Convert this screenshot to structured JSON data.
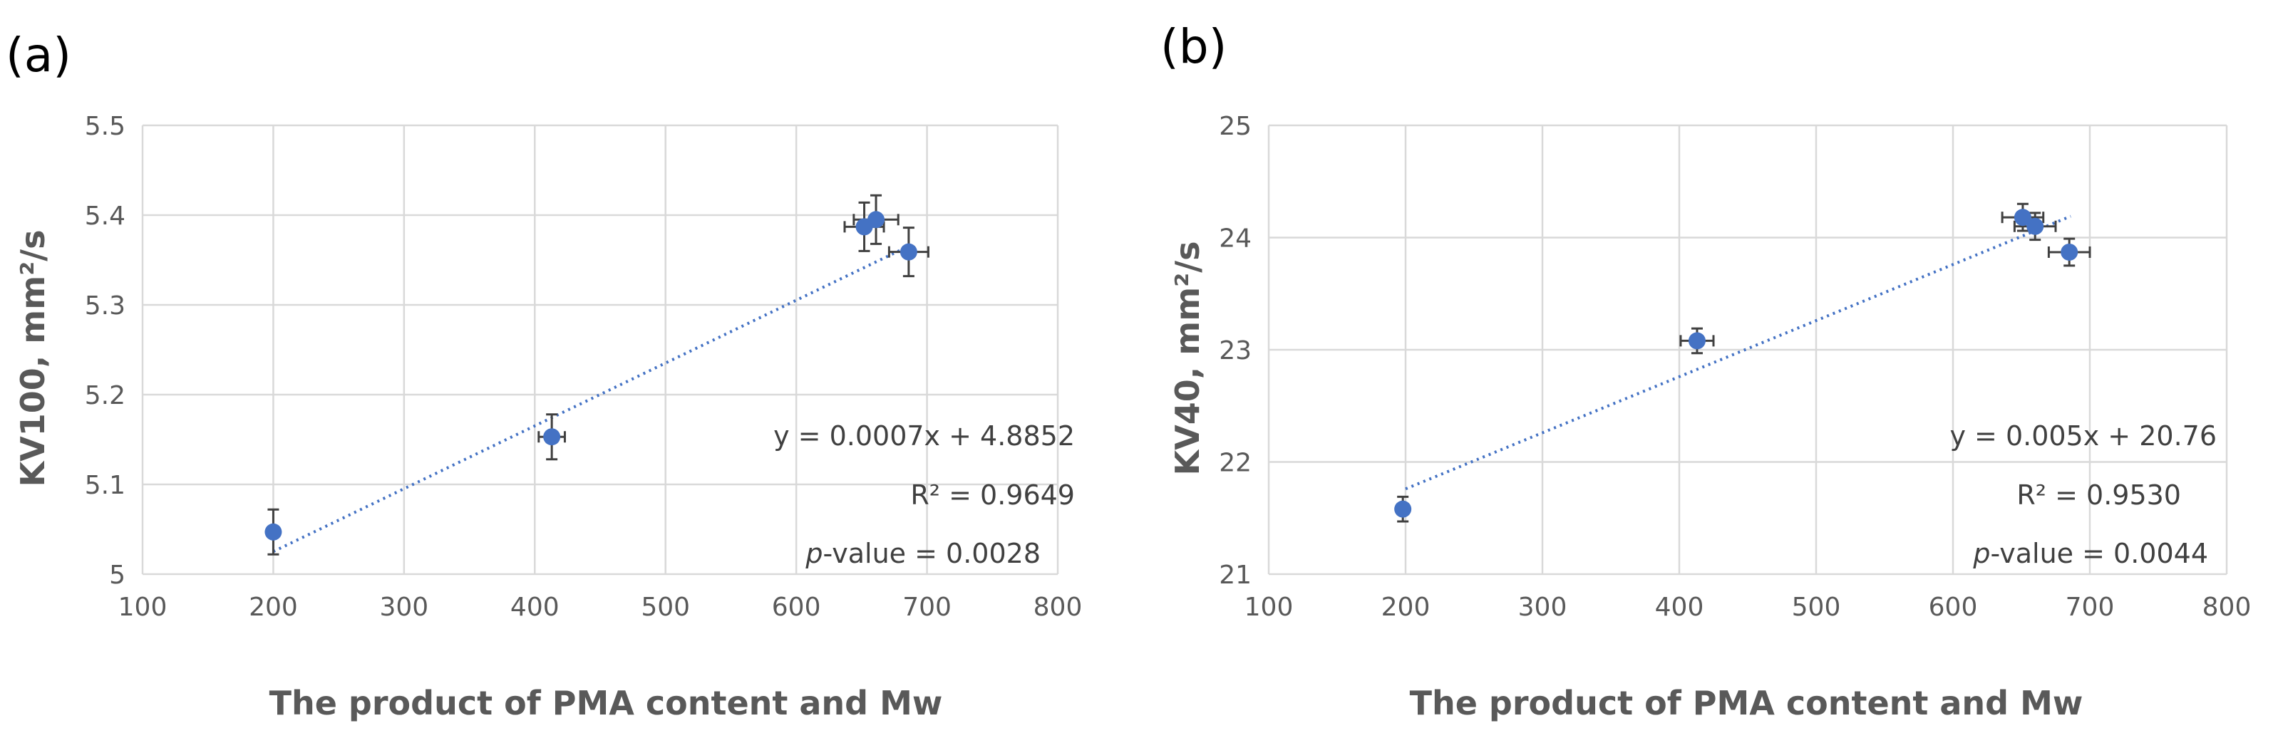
{
  "chart_data": [
    {
      "type": "scatter",
      "panel_label": "(a)",
      "title": "",
      "xlabel": "The product of PMA content and Mw",
      "ylabel": "KV100, mm²/s",
      "xlim": [
        100,
        800
      ],
      "ylim": [
        5.0,
        5.5
      ],
      "xticks": [
        100,
        200,
        300,
        400,
        500,
        600,
        700,
        800
      ],
      "xtick_labels": [
        "100",
        "200",
        "300",
        "400",
        "500",
        "600",
        "700",
        "800"
      ],
      "yticks": [
        5.0,
        5.1,
        5.2,
        5.3,
        5.4,
        5.5
      ],
      "ytick_labels": [
        "5",
        "5.1",
        "5.2",
        "5.3",
        "5.4",
        "5.5"
      ],
      "grid": true,
      "series": [
        {
          "name": "KV100",
          "color": "#4472c4",
          "points": [
            {
              "x": 200,
              "y": 5.047,
              "xerr": 0,
              "yerr": 0.025
            },
            {
              "x": 413,
              "y": 5.153,
              "xerr": 10,
              "yerr": 0.025
            },
            {
              "x": 652,
              "y": 5.387,
              "xerr": 15,
              "yerr": 0.027
            },
            {
              "x": 661,
              "y": 5.395,
              "xerr": 17,
              "yerr": 0.027
            },
            {
              "x": 686,
              "y": 5.359,
              "xerr": 15,
              "yerr": 0.027
            }
          ]
        }
      ],
      "trendline": {
        "slope": 0.0007,
        "intercept": 4.8852,
        "x_from": 200,
        "x_to": 686,
        "style": "dotted",
        "color": "#4472c4"
      },
      "annotations": {
        "equation": "y = 0.0007x + 4.8852",
        "r2": "R² = 0.9649",
        "p_italic": "p",
        "p_rest": "-value = 0.0028"
      }
    },
    {
      "type": "scatter",
      "panel_label": "(b)",
      "title": "",
      "xlabel": "The product of PMA content and Mw",
      "ylabel": "KV40, mm²/s",
      "xlim": [
        100,
        800
      ],
      "ylim": [
        21,
        25
      ],
      "xticks": [
        100,
        200,
        300,
        400,
        500,
        600,
        700,
        800
      ],
      "xtick_labels": [
        "100",
        "200",
        "300",
        "400",
        "500",
        "600",
        "700",
        "800"
      ],
      "yticks": [
        21,
        22,
        23,
        24,
        25
      ],
      "ytick_labels": [
        "21",
        "22",
        "23",
        "24",
        "25"
      ],
      "grid": true,
      "series": [
        {
          "name": "KV40",
          "color": "#4472c4",
          "points": [
            {
              "x": 198,
              "y": 21.58,
              "xerr": 0,
              "yerr": 0.11
            },
            {
              "x": 413,
              "y": 23.08,
              "xerr": 12,
              "yerr": 0.11
            },
            {
              "x": 651,
              "y": 24.18,
              "xerr": 15,
              "yerr": 0.12
            },
            {
              "x": 660,
              "y": 24.1,
              "xerr": 15,
              "yerr": 0.12
            },
            {
              "x": 685,
              "y": 23.87,
              "xerr": 15,
              "yerr": 0.12
            }
          ]
        }
      ],
      "trendline": {
        "slope": 0.005,
        "intercept": 20.76,
        "x_from": 200,
        "x_to": 686,
        "style": "dotted",
        "color": "#4472c4"
      },
      "annotations": {
        "equation": "y = 0.005x + 20.76",
        "r2": "R² = 0.9530",
        "p_italic": "p",
        "p_rest": "-value = 0.0044"
      }
    }
  ]
}
